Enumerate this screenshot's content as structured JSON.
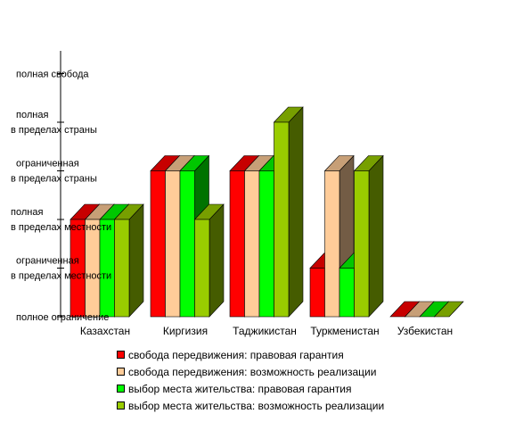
{
  "chart_data": {
    "type": "bar",
    "title": "",
    "xlabel": "",
    "ylabel": "",
    "ylim": [
      0,
      5
    ],
    "y_ticks": [
      {
        "value": 0,
        "lines": [
          "полное ограничение"
        ]
      },
      {
        "value": 1,
        "lines": [
          "ограниченная",
          "в пределах местности"
        ]
      },
      {
        "value": 2,
        "lines": [
          "полная",
          "в пределах местности"
        ]
      },
      {
        "value": 3,
        "lines": [
          "ограниченная",
          "в пределах страны"
        ]
      },
      {
        "value": 4,
        "lines": [
          "полная",
          "в пределах страны"
        ]
      },
      {
        "value": 5,
        "lines": [
          "полная свобода"
        ]
      }
    ],
    "categories": [
      "Казахстан",
      "Киргизия",
      "Таджикистан",
      "Туркменистан",
      "Узбекистан"
    ],
    "series": [
      {
        "name": "свобода передвижения: правовая гарантия",
        "color": "#ff0000",
        "values": [
          2,
          3,
          3,
          1,
          0
        ]
      },
      {
        "name": "свобода передвижения: возможность реализации",
        "color": "#ffcc99",
        "values": [
          2,
          3,
          3,
          3,
          0
        ]
      },
      {
        "name": "выбор места жительства: правовая гарантия",
        "color": "#00ff00",
        "values": [
          2,
          3,
          3,
          1,
          0
        ]
      },
      {
        "name": "выбор места жительства: возможность реализации",
        "color": "#99cc00",
        "values": [
          2,
          2,
          4,
          3,
          0
        ]
      }
    ],
    "legend_position": "bottom",
    "grid": false,
    "three_d": true
  }
}
